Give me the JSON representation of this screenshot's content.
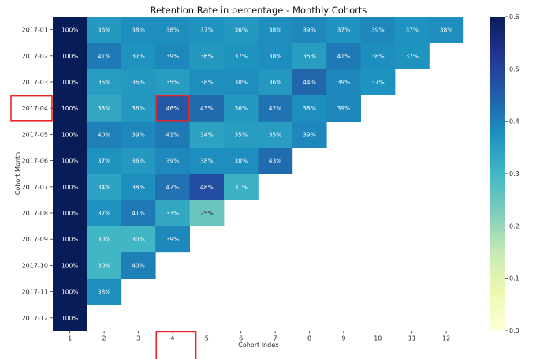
{
  "chart_data": {
    "type": "heatmap",
    "title": "Retention Rate in percentage:- Monthly Cohorts",
    "xlabel": "Cohort Index",
    "ylabel": "Cohort Month",
    "x": [
      "1",
      "2",
      "3",
      "4",
      "5",
      "6",
      "7",
      "8",
      "9",
      "10",
      "11",
      "12"
    ],
    "y": [
      "2017-01",
      "2017-02",
      "2017-03",
      "2017-04",
      "2017-05",
      "2017-06",
      "2017-07",
      "2017-08",
      "2017-09",
      "2017-10",
      "2017-11",
      "2017-12"
    ],
    "values": [
      [
        100,
        36,
        38,
        38,
        37,
        36,
        38,
        39,
        37,
        39,
        37,
        38
      ],
      [
        100,
        41,
        37,
        39,
        36,
        37,
        38,
        35,
        41,
        38,
        37,
        null
      ],
      [
        100,
        35,
        36,
        35,
        38,
        38,
        36,
        44,
        39,
        37,
        null,
        null
      ],
      [
        100,
        33,
        36,
        46,
        43,
        36,
        42,
        38,
        39,
        null,
        null,
        null
      ],
      [
        100,
        40,
        39,
        41,
        34,
        35,
        35,
        39,
        null,
        null,
        null,
        null
      ],
      [
        100,
        37,
        36,
        39,
        38,
        38,
        43,
        null,
        null,
        null,
        null,
        null
      ],
      [
        100,
        34,
        38,
        42,
        48,
        31,
        null,
        null,
        null,
        null,
        null,
        null
      ],
      [
        100,
        37,
        41,
        33,
        25,
        null,
        null,
        null,
        null,
        null,
        null,
        null
      ],
      [
        100,
        30,
        30,
        39,
        null,
        null,
        null,
        null,
        null,
        null,
        null,
        null
      ],
      [
        100,
        30,
        40,
        null,
        null,
        null,
        null,
        null,
        null,
        null,
        null,
        null
      ],
      [
        100,
        38,
        null,
        null,
        null,
        null,
        null,
        null,
        null,
        null,
        null,
        null
      ],
      [
        100,
        null,
        null,
        null,
        null,
        null,
        null,
        null,
        null,
        null,
        null,
        null
      ]
    ],
    "value_suffix": "%",
    "colormap": "YlGnBu",
    "color_range": [
      0,
      0.6
    ],
    "colorbar_ticks": [
      "0.0",
      "0.1",
      "0.2",
      "0.3",
      "0.4",
      "0.5",
      "0.6"
    ],
    "highlights": {
      "row_label": "2017-04",
      "col_label": "4",
      "cell": {
        "row": "2017-04",
        "col": "4"
      },
      "color": "#e8262a"
    }
  }
}
